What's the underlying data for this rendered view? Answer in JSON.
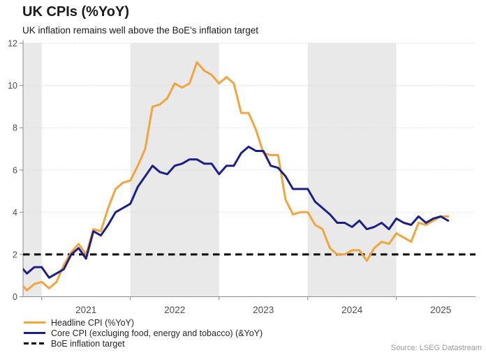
{
  "header": {
    "title": "UK CPIs (%YoY)",
    "subtitle": "UK inflation remains well above the BoE's inflation target"
  },
  "chart_data": {
    "type": "line",
    "title": "UK CPIs (%YoY)",
    "subtitle": "UK inflation remains well above the BoE's inflation target",
    "xlabel": "",
    "ylabel": "",
    "ylim": [
      0,
      12
    ],
    "y_ticks": [
      0,
      2,
      4,
      6,
      8,
      10,
      12
    ],
    "x_tick_years": [
      2021,
      2022,
      2023,
      2024,
      2025
    ],
    "grid": "dotted-horizontal",
    "legend_position": "bottom-left",
    "shaded_bands": [
      [
        2020.79,
        2021
      ],
      [
        2022,
        2023
      ],
      [
        2024,
        2025
      ]
    ],
    "band_color": "#e9e9e9",
    "axis_color": "#8c8c8c",
    "grid_color": "#d8d8d8",
    "label_color": "#4d4d4d",
    "months": [
      "2020-10",
      "2020-11",
      "2020-12",
      "2021-01",
      "2021-02",
      "2021-03",
      "2021-04",
      "2021-05",
      "2021-06",
      "2021-07",
      "2021-08",
      "2021-09",
      "2021-10",
      "2021-11",
      "2021-12",
      "2022-01",
      "2022-02",
      "2022-03",
      "2022-04",
      "2022-05",
      "2022-06",
      "2022-07",
      "2022-08",
      "2022-09",
      "2022-10",
      "2022-11",
      "2022-12",
      "2023-01",
      "2023-02",
      "2023-03",
      "2023-04",
      "2023-05",
      "2023-06",
      "2023-07",
      "2023-08",
      "2023-09",
      "2023-10",
      "2023-11",
      "2023-12",
      "2024-01",
      "2024-02",
      "2024-03",
      "2024-04",
      "2024-05",
      "2024-06",
      "2024-07",
      "2024-08",
      "2024-09",
      "2024-10",
      "2024-11",
      "2024-12",
      "2025-01",
      "2025-02",
      "2025-03",
      "2025-04",
      "2025-05",
      "2025-06",
      "2025-07",
      "2025-08"
    ],
    "series": [
      {
        "name": "Headline CPI (%YoY)",
        "color": "#f2a43d",
        "values": [
          0.7,
          0.3,
          0.6,
          0.7,
          0.4,
          0.7,
          1.5,
          2.1,
          2.5,
          2.0,
          3.2,
          3.1,
          4.2,
          5.1,
          5.4,
          5.5,
          6.2,
          7.0,
          9.0,
          9.1,
          9.4,
          10.1,
          9.9,
          10.1,
          11.1,
          10.7,
          10.5,
          10.1,
          10.4,
          10.1,
          8.7,
          8.7,
          7.9,
          6.8,
          6.7,
          6.7,
          4.6,
          3.9,
          4.0,
          4.0,
          3.4,
          3.2,
          2.3,
          2.0,
          2.0,
          2.2,
          2.2,
          1.7,
          2.3,
          2.6,
          2.5,
          3.0,
          2.8,
          2.6,
          3.5,
          3.4,
          3.6,
          3.8,
          3.8
        ]
      },
      {
        "name": "Core CPI (excluging food, energy and tobacco) (&YoY)",
        "color": "#1b1f87",
        "values": [
          1.5,
          1.1,
          1.4,
          1.4,
          0.9,
          1.1,
          1.3,
          2.0,
          2.3,
          1.8,
          3.1,
          2.9,
          3.4,
          4.0,
          4.2,
          4.4,
          5.2,
          5.7,
          6.2,
          5.9,
          5.8,
          6.2,
          6.3,
          6.5,
          6.5,
          6.3,
          6.3,
          5.8,
          6.2,
          6.2,
          6.8,
          7.1,
          6.9,
          6.9,
          6.2,
          6.1,
          5.7,
          5.1,
          5.1,
          5.1,
          4.5,
          4.2,
          3.9,
          3.5,
          3.5,
          3.3,
          3.6,
          3.2,
          3.3,
          3.5,
          3.2,
          3.7,
          3.5,
          3.4,
          3.8,
          3.5,
          3.7,
          3.8,
          3.6
        ]
      }
    ],
    "reference_line": {
      "name": "BoE inflation target",
      "value": 2,
      "color": "#000000",
      "style": "dashed"
    },
    "source": "Source: LSEG Datastream"
  }
}
